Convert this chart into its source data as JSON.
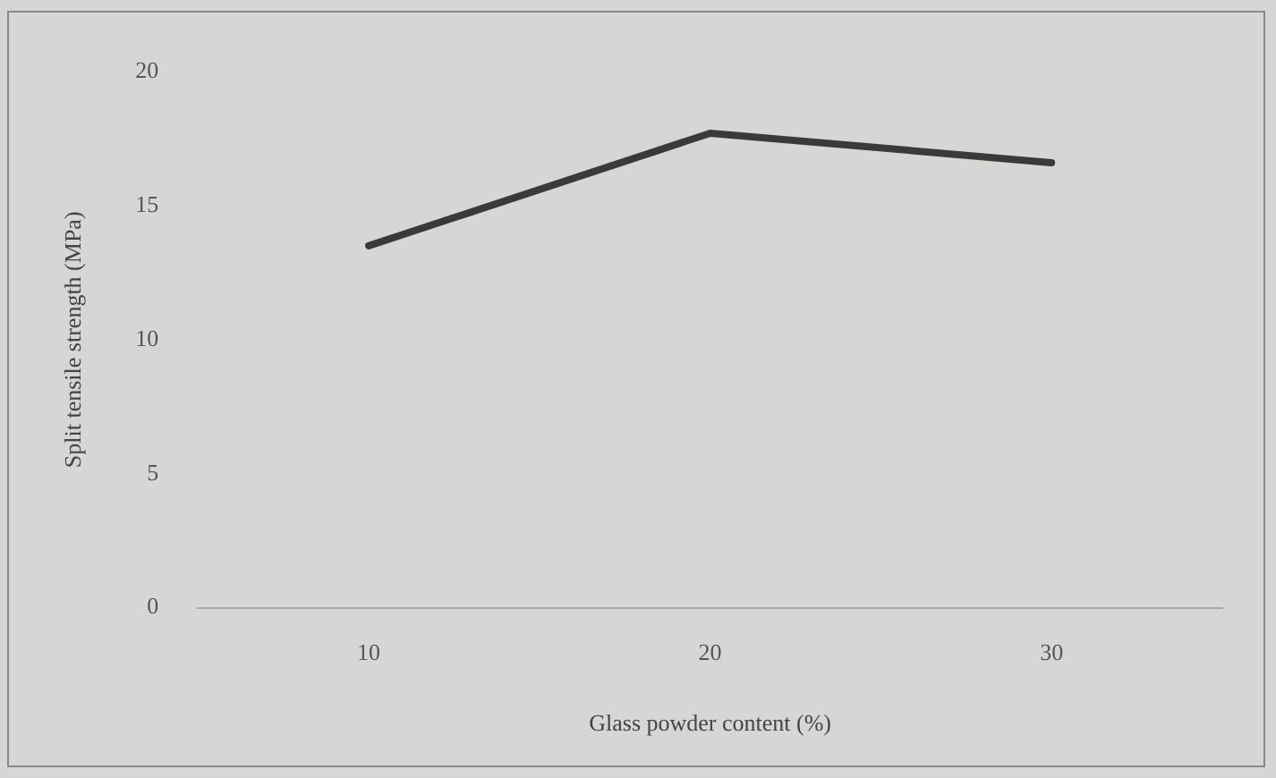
{
  "chart_data": {
    "type": "line",
    "xlabel": "Glass powder content (%)",
    "ylabel": "Split tensile strength (MPa)",
    "categories": [
      "10",
      "20",
      "30"
    ],
    "series": [
      {
        "color": "#3a3a3a",
        "values": [
          13.5,
          17.7,
          16.6
        ]
      }
    ],
    "ylim": [
      0,
      20
    ],
    "yticks": [
      0,
      5,
      10,
      15,
      20
    ],
    "grid": false,
    "legend": false,
    "marker": "none",
    "line_style": "solid"
  }
}
